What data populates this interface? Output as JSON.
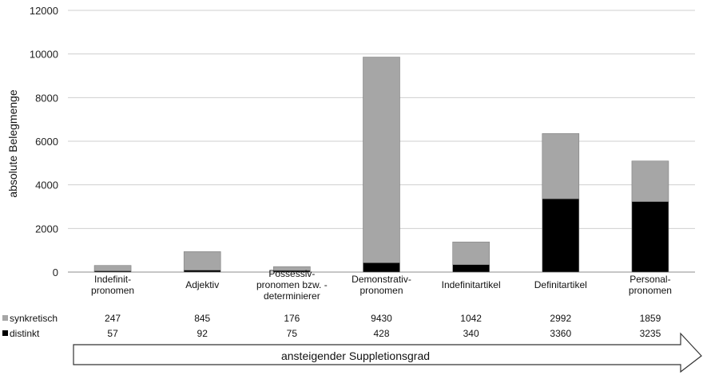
{
  "chart_data": {
    "type": "bar",
    "stacked": true,
    "ylabel": "absolute Belegmenge",
    "ylim": [
      0,
      12000
    ],
    "yticks": [
      0,
      2000,
      4000,
      6000,
      8000,
      10000,
      12000
    ],
    "grid": true,
    "categories": [
      [
        "Indefinit-",
        "pronomen"
      ],
      [
        "Adjektiv"
      ],
      [
        "Possessiv-",
        "pronomen bzw. -",
        "determinierer"
      ],
      [
        "Demonstrativ-",
        "pronomen"
      ],
      [
        "Indefinitartikel"
      ],
      [
        "Definitartikel"
      ],
      [
        "Personal-",
        "pronomen"
      ]
    ],
    "series": [
      {
        "name": "distinkt",
        "color": "#000000",
        "values": [
          57,
          92,
          75,
          428,
          340,
          3360,
          3235
        ]
      },
      {
        "name": "synkretisch",
        "color": "#a6a6a6",
        "values": [
          247,
          845,
          176,
          9430,
          1042,
          2992,
          1859
        ]
      }
    ],
    "data_table": true,
    "arrow_label": "ansteigender Suppletionsgrad"
  }
}
